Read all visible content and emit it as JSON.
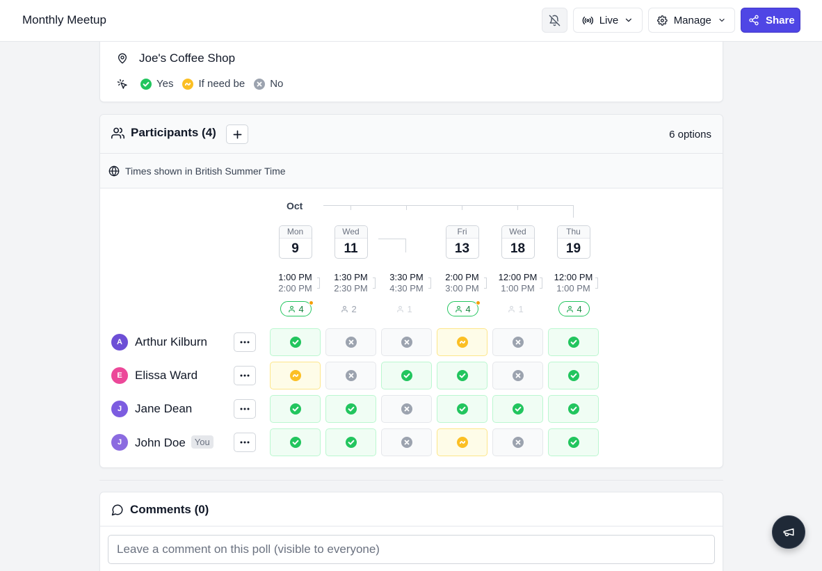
{
  "header": {
    "title": "Monthly Meetup",
    "live_label": "Live",
    "manage_label": "Manage",
    "share_label": "Share"
  },
  "details": {
    "location": "Joe's Coffee Shop",
    "legend": {
      "yes": "Yes",
      "ifneedbe": "If need be",
      "no": "No"
    }
  },
  "participants": {
    "title": "Participants (4)",
    "options_count": "6 options",
    "timezone_notice": "Times shown in British Summer Time",
    "month": "Oct",
    "options": [
      {
        "dow": "Mon",
        "day": "9",
        "start": "1:00 PM",
        "end": "2:00 PM",
        "count": "4",
        "level": "high",
        "dot": true,
        "boxed": true
      },
      {
        "dow": "Wed",
        "day": "11",
        "start": "1:30 PM",
        "end": "2:30 PM",
        "count": "2",
        "level": "low2",
        "dot": false,
        "boxed": true
      },
      {
        "dow": "Wed",
        "day": "11",
        "start": "3:30 PM",
        "end": "4:30 PM",
        "count": "1",
        "level": "low1",
        "dot": false,
        "boxed": false
      },
      {
        "dow": "Fri",
        "day": "13",
        "start": "2:00 PM",
        "end": "3:00 PM",
        "count": "4",
        "level": "high",
        "dot": true,
        "boxed": true
      },
      {
        "dow": "Wed",
        "day": "18",
        "start": "12:00 PM",
        "end": "1:00 PM",
        "count": "1",
        "level": "low1",
        "dot": false,
        "boxed": true
      },
      {
        "dow": "Thu",
        "day": "19",
        "start": "12:00 PM",
        "end": "1:00 PM",
        "count": "4",
        "level": "high",
        "dot": false,
        "boxed": true
      }
    ],
    "rows": [
      {
        "initial": "A",
        "name": "Arthur Kilburn",
        "color": "#6d4fd6",
        "you": "",
        "votes": [
          "yes",
          "no",
          "no",
          "ifneedbe",
          "no",
          "yes"
        ]
      },
      {
        "initial": "E",
        "name": "Elissa Ward",
        "color": "#ec4899",
        "you": "",
        "votes": [
          "ifneedbe",
          "no",
          "yes",
          "yes",
          "no",
          "yes"
        ]
      },
      {
        "initial": "J",
        "name": "Jane Dean",
        "color": "#7c5ce0",
        "you": "",
        "votes": [
          "yes",
          "yes",
          "no",
          "yes",
          "yes",
          "yes"
        ]
      },
      {
        "initial": "J",
        "name": "John Doe",
        "color": "#8b6be0",
        "you": "You",
        "votes": [
          "yes",
          "yes",
          "no",
          "ifneedbe",
          "no",
          "yes"
        ]
      }
    ]
  },
  "comments": {
    "title": "Comments (0)",
    "placeholder": "Leave a comment on this poll (visible to everyone)"
  },
  "colors": {
    "accent": "#4f46e5",
    "yes": "#22c55e",
    "ifneedbe": "#fbbf24",
    "no": "#9ca3af"
  }
}
